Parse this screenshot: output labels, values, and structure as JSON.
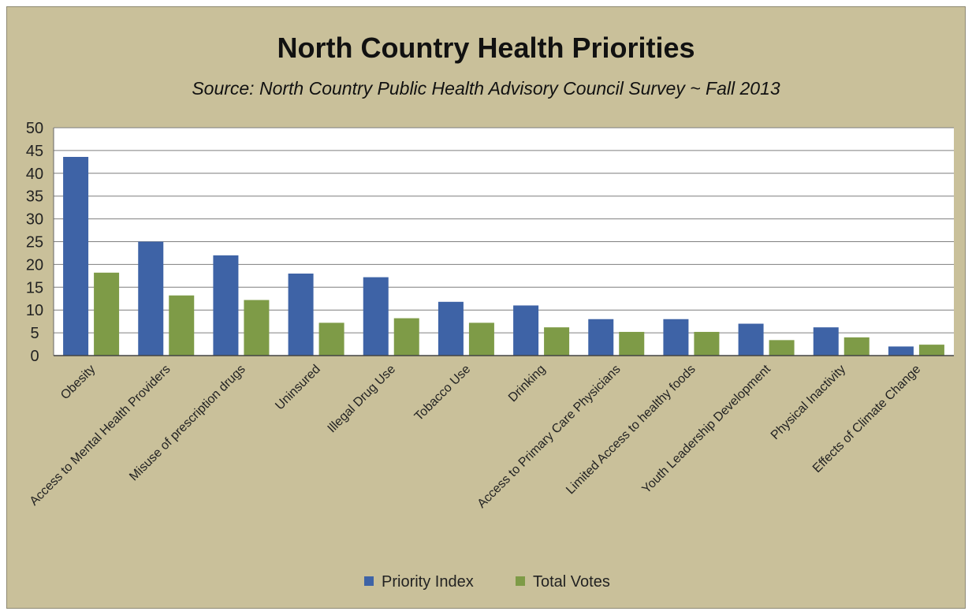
{
  "chart_data": {
    "type": "bar",
    "title": "North Country Health Priorities",
    "subtitle": "Source:  North Country Public Health Advisory Council Survey ~ Fall 2013",
    "xlabel": "",
    "ylabel": "",
    "ylim": [
      0,
      50
    ],
    "yticks": [
      0,
      5,
      10,
      15,
      20,
      25,
      30,
      35,
      40,
      45,
      50
    ],
    "grid": true,
    "legend_position": "bottom",
    "categories": [
      "Obesity",
      "Access to Mental Health Providers",
      "Misuse of prescription drugs",
      "Uninsured",
      "Illegal Drug Use",
      "Tobacco Use",
      "Drinking",
      "Access to Primary Care Physicians",
      "Limited Access to healthy foods",
      "Youth Leadership Development",
      "Physical Inactivity",
      "Effects of Climate Change"
    ],
    "series": [
      {
        "name": "Priority Index",
        "color": "#3e63a6",
        "values": [
          43.6,
          25,
          22,
          18,
          17.2,
          11.8,
          11,
          8,
          8,
          7,
          6.2,
          2
        ]
      },
      {
        "name": "Total Votes",
        "color": "#7e9b47",
        "values": [
          18.2,
          13.2,
          12.2,
          7.2,
          8.2,
          7.2,
          6.2,
          5.2,
          5.2,
          3.4,
          4,
          2.4
        ]
      }
    ]
  }
}
